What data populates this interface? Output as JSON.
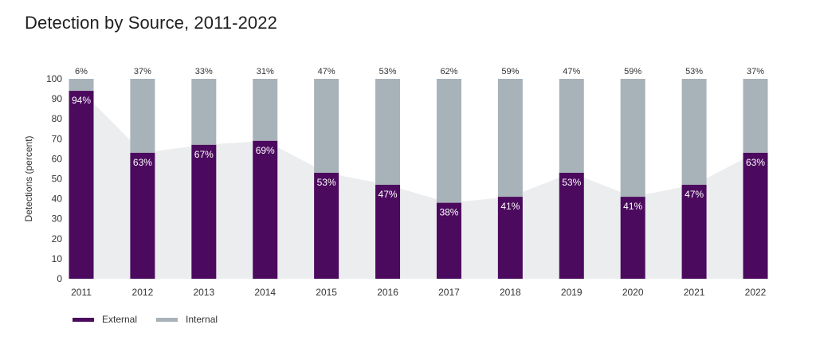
{
  "chart_data": {
    "type": "bar",
    "title": "Detection by Source, 2011-2022",
    "ylabel": "Detections (percent)",
    "xlabel": "",
    "ylim": [
      0,
      100
    ],
    "yticks": [
      0,
      10,
      20,
      30,
      40,
      50,
      60,
      70,
      80,
      90,
      100
    ],
    "stacked": true,
    "categories": [
      "2011",
      "2012",
      "2013",
      "2014",
      "2015",
      "2016",
      "2017",
      "2018",
      "2019",
      "2020",
      "2021",
      "2022"
    ],
    "series": [
      {
        "name": "External",
        "color": "#4b0a5e",
        "values": [
          94,
          63,
          67,
          69,
          53,
          47,
          38,
          41,
          53,
          41,
          47,
          63
        ],
        "labels": [
          "94%",
          "63%",
          "67%",
          "69%",
          "53%",
          "47%",
          "38%",
          "41%",
          "53%",
          "41%",
          "47%",
          "63%"
        ]
      },
      {
        "name": "Internal",
        "color": "#a8b2b9",
        "values": [
          6,
          37,
          33,
          31,
          47,
          53,
          62,
          59,
          47,
          59,
          53,
          37
        ],
        "labels": [
          "6%",
          "37%",
          "33%",
          "31%",
          "47%",
          "53%",
          "62%",
          "59%",
          "47%",
          "59%",
          "53%",
          "37%"
        ]
      }
    ],
    "trend_area_color": "#ebedef",
    "legend_position": "bottom-left",
    "grid": false
  }
}
